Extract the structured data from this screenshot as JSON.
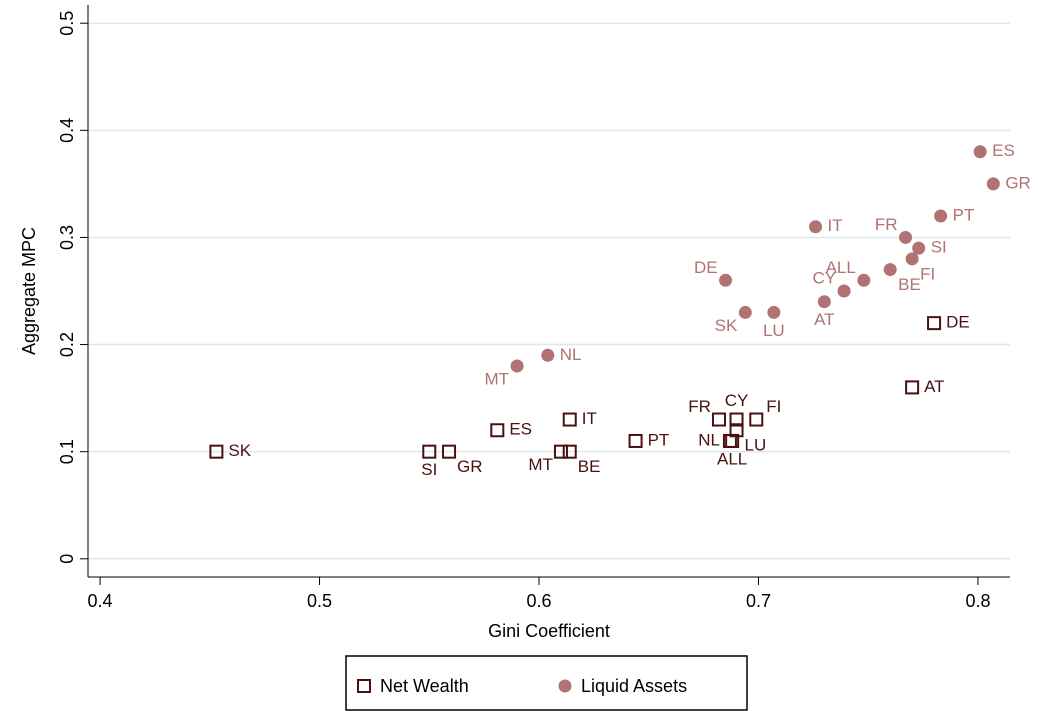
{
  "chart_data": {
    "type": "scatter",
    "x_label": "Gini Coefficient",
    "y_label": "Aggregate MPC",
    "xlim": [
      0.3945,
      0.8146
    ],
    "ylim": [
      -0.017,
      0.517
    ],
    "xticks": [
      0.4,
      0.5,
      0.6,
      0.7,
      0.8
    ],
    "yticks": [
      0,
      0.1,
      0.2,
      0.3,
      0.4,
      0.5
    ],
    "grid": true,
    "legend": "bottom",
    "series": [
      {
        "name": "Net Wealth",
        "color": "#4a1010",
        "marker": "square",
        "labels": [
          "SK",
          "SI",
          "GR",
          "ES",
          "IT",
          "MT",
          "BE",
          "PT",
          "FR",
          "CY",
          "FI",
          "NL",
          "ALL",
          "LU",
          "AT",
          "DE"
        ],
        "x": [
          0.453,
          0.55,
          0.559,
          0.581,
          0.614,
          0.61,
          0.614,
          0.644,
          0.682,
          0.69,
          0.699,
          0.687,
          0.688,
          0.69,
          0.77,
          0.78
        ],
        "values": [
          0.1,
          0.1,
          0.1,
          0.12,
          0.13,
          0.1,
          0.1,
          0.11,
          0.13,
          0.13,
          0.13,
          0.11,
          0.11,
          0.12,
          0.16,
          0.22
        ]
      },
      {
        "name": "Liquid Assets",
        "color": "#b07272",
        "marker": "circle",
        "labels": [
          "MT",
          "NL",
          "DE",
          "SK",
          "LU",
          "IT",
          "AT",
          "CY",
          "ALL",
          "BE",
          "FR",
          "FI",
          "SI",
          "PT",
          "ES",
          "GR"
        ],
        "x": [
          0.59,
          0.604,
          0.685,
          0.694,
          0.707,
          0.726,
          0.73,
          0.739,
          0.748,
          0.76,
          0.767,
          0.77,
          0.773,
          0.783,
          0.801,
          0.807
        ],
        "values": [
          0.18,
          0.19,
          0.26,
          0.23,
          0.23,
          0.31,
          0.24,
          0.25,
          0.26,
          0.27,
          0.3,
          0.28,
          0.29,
          0.32,
          0.38,
          0.35
        ]
      }
    ]
  }
}
